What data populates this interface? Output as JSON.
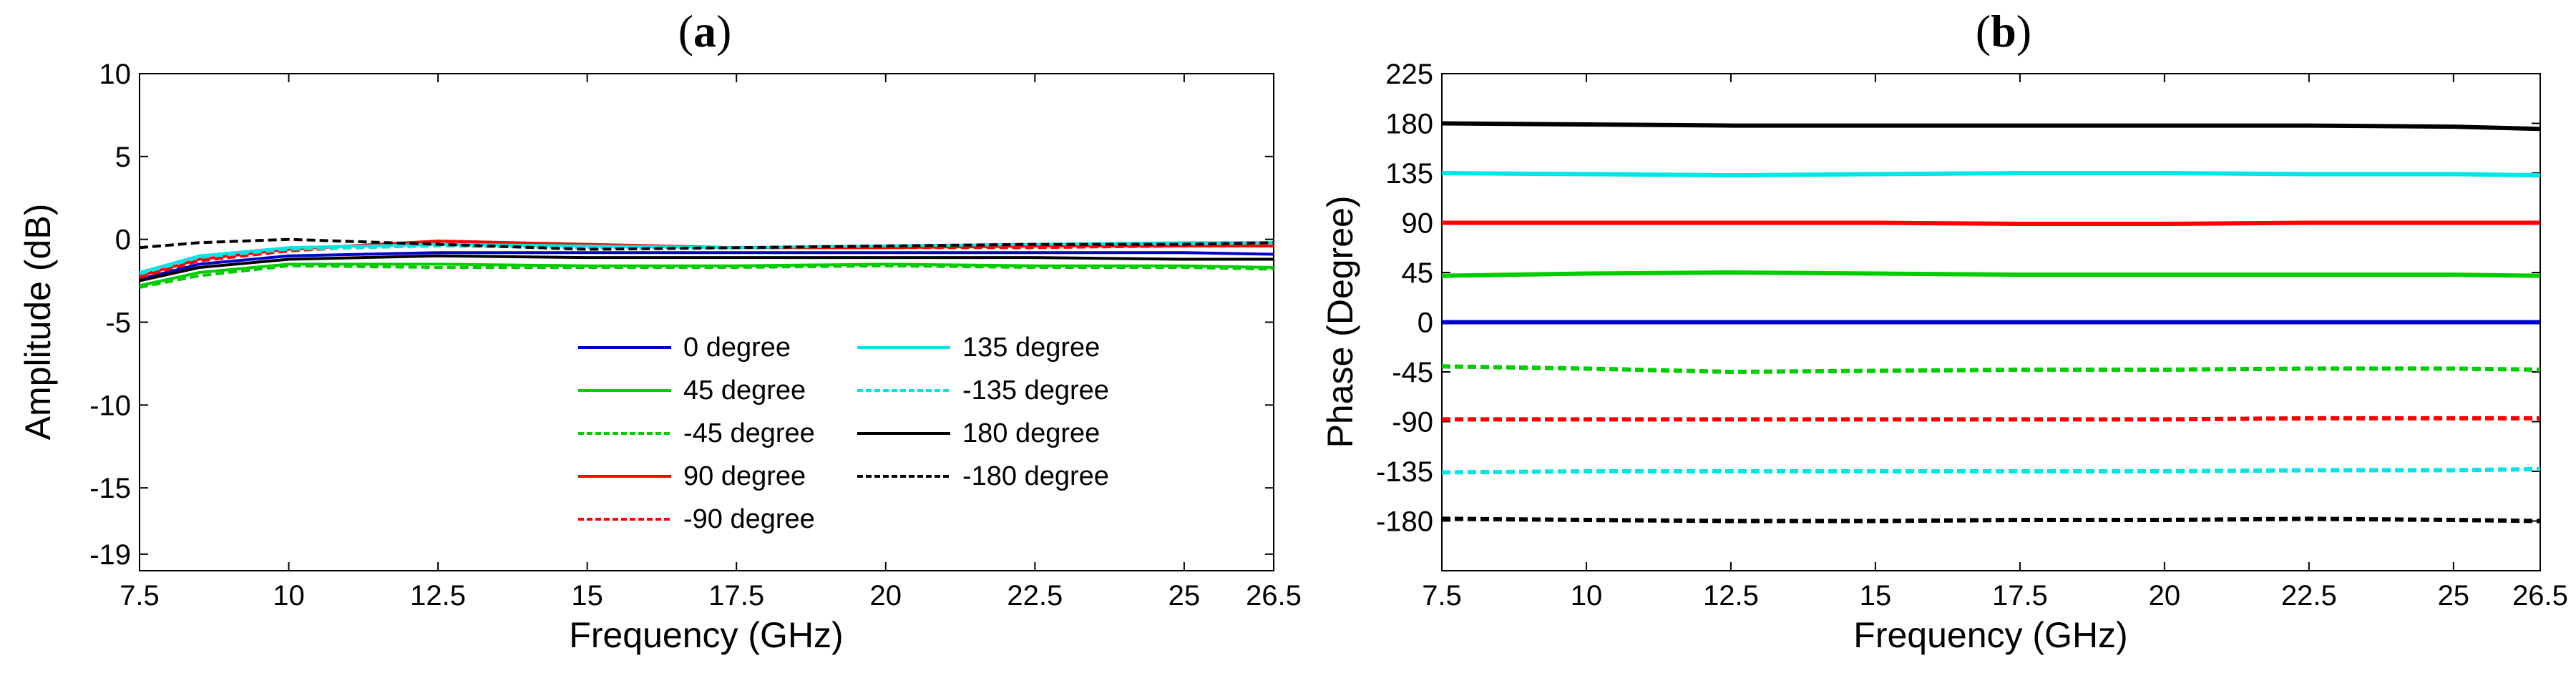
{
  "chart_data": [
    {
      "type": "line",
      "panel_label": "(a)",
      "panel_letter": "a",
      "xlabel": "Frequency (GHz)",
      "ylabel": "Amplitude (dB)",
      "xlim": [
        7.5,
        26.5
      ],
      "ylim": [
        -20,
        10
      ],
      "xticks": [
        "7.5",
        "10",
        "12.5",
        "15",
        "17.5",
        "20",
        "22.5",
        "25",
        "26.5"
      ],
      "yticks": [
        "10",
        "5",
        "0",
        "-5",
        "-10",
        "-15",
        "-19"
      ],
      "legend_position": "bottom-right",
      "x": [
        7.5,
        8.5,
        10,
        12.5,
        15,
        17.5,
        20,
        22.5,
        25,
        26.5
      ],
      "series": [
        {
          "name": "0 degree",
          "color": "#0000cc",
          "dashed": false,
          "values": [
            -2.4,
            -1.5,
            -1.0,
            -0.8,
            -0.8,
            -0.8,
            -0.8,
            -0.8,
            -0.8,
            -0.9
          ]
        },
        {
          "name": "45 degree",
          "color": "#00cc00",
          "dashed": false,
          "values": [
            -2.8,
            -2.0,
            -1.5,
            -1.5,
            -1.6,
            -1.6,
            -1.5,
            -1.6,
            -1.6,
            -1.7
          ]
        },
        {
          "name": "-45 degree",
          "color": "#00cc00",
          "dashed": true,
          "values": [
            -2.9,
            -2.2,
            -1.6,
            -1.7,
            -1.7,
            -1.7,
            -1.6,
            -1.7,
            -1.7,
            -1.8
          ]
        },
        {
          "name": "90 degree",
          "color": "#ff0000",
          "dashed": false,
          "values": [
            -2.2,
            -1.2,
            -0.6,
            -0.1,
            -0.3,
            -0.5,
            -0.5,
            -0.4,
            -0.4,
            -0.4
          ]
        },
        {
          "name": "-90 degree",
          "color": "#ff0000",
          "dashed": true,
          "values": [
            -2.3,
            -1.3,
            -0.7,
            -0.2,
            -0.4,
            -0.5,
            -0.5,
            -0.5,
            -0.4,
            -0.4
          ]
        },
        {
          "name": "135 degree",
          "color": "#00e5e5",
          "dashed": false,
          "values": [
            -2.0,
            -1.0,
            -0.5,
            -0.3,
            -0.4,
            -0.5,
            -0.4,
            -0.3,
            -0.2,
            -0.2
          ]
        },
        {
          "name": "-135 degree",
          "color": "#00e5e5",
          "dashed": true,
          "values": [
            -2.1,
            -1.1,
            -0.6,
            -0.4,
            -0.5,
            -0.5,
            -0.4,
            -0.3,
            -0.3,
            -0.2
          ]
        },
        {
          "name": "180 degree",
          "color": "#000000",
          "dashed": false,
          "values": [
            -2.5,
            -1.7,
            -1.2,
            -1.0,
            -1.1,
            -1.1,
            -1.1,
            -1.1,
            -1.2,
            -1.2
          ]
        },
        {
          "name": "-180 degree",
          "color": "#000000",
          "dashed": true,
          "values": [
            -0.5,
            -0.2,
            0.0,
            -0.3,
            -0.6,
            -0.5,
            -0.4,
            -0.3,
            -0.3,
            -0.2
          ]
        }
      ]
    },
    {
      "type": "line",
      "panel_label": "(b)",
      "panel_letter": "b",
      "xlabel": "Frequency (GHz)",
      "ylabel": "Phase (Degree)",
      "xlim": [
        7.5,
        26.5
      ],
      "ylim": [
        -225,
        225
      ],
      "xticks": [
        "7.5",
        "10",
        "12.5",
        "15",
        "17.5",
        "20",
        "22.5",
        "25",
        "26.5"
      ],
      "yticks": [
        "225",
        "180",
        "135",
        "90",
        "45",
        "0",
        "-45",
        "-90",
        "-135",
        "-180"
      ],
      "x": [
        7.5,
        10,
        12.5,
        15,
        17.5,
        20,
        22.5,
        25,
        26.5
      ],
      "series": [
        {
          "name": "180 degree",
          "color": "#000000",
          "dashed": false,
          "values": [
            180,
            179,
            178,
            178,
            178,
            178,
            178,
            177,
            175
          ]
        },
        {
          "name": "135 degree",
          "color": "#00e5e5",
          "dashed": false,
          "values": [
            135,
            134,
            133,
            134,
            135,
            135,
            134,
            134,
            133
          ]
        },
        {
          "name": "90 degree",
          "color": "#ff0000",
          "dashed": false,
          "values": [
            90,
            90,
            90,
            90,
            89,
            89,
            90,
            90,
            90
          ]
        },
        {
          "name": "45 degree",
          "color": "#00cc00",
          "dashed": false,
          "values": [
            42,
            44,
            45,
            44,
            43,
            43,
            43,
            43,
            42
          ]
        },
        {
          "name": "0 degree",
          "color": "#0000cc",
          "dashed": false,
          "values": [
            0,
            0,
            0,
            0,
            0,
            0,
            0,
            0,
            0
          ]
        },
        {
          "name": "-45 degree",
          "color": "#00cc00",
          "dashed": true,
          "values": [
            -40,
            -42,
            -45,
            -44,
            -43,
            -43,
            -42,
            -42,
            -43
          ]
        },
        {
          "name": "-90 degree",
          "color": "#ff0000",
          "dashed": true,
          "values": [
            -88,
            -88,
            -88,
            -88,
            -88,
            -88,
            -87,
            -87,
            -87
          ]
        },
        {
          "name": "-135 degree",
          "color": "#00e5e5",
          "dashed": true,
          "values": [
            -136,
            -135,
            -135,
            -135,
            -135,
            -135,
            -134,
            -134,
            -133
          ]
        },
        {
          "name": "-180 degree",
          "color": "#000000",
          "dashed": true,
          "values": [
            -178,
            -179,
            -180,
            -180,
            -179,
            -179,
            -178,
            -179,
            -180
          ]
        }
      ]
    }
  ]
}
